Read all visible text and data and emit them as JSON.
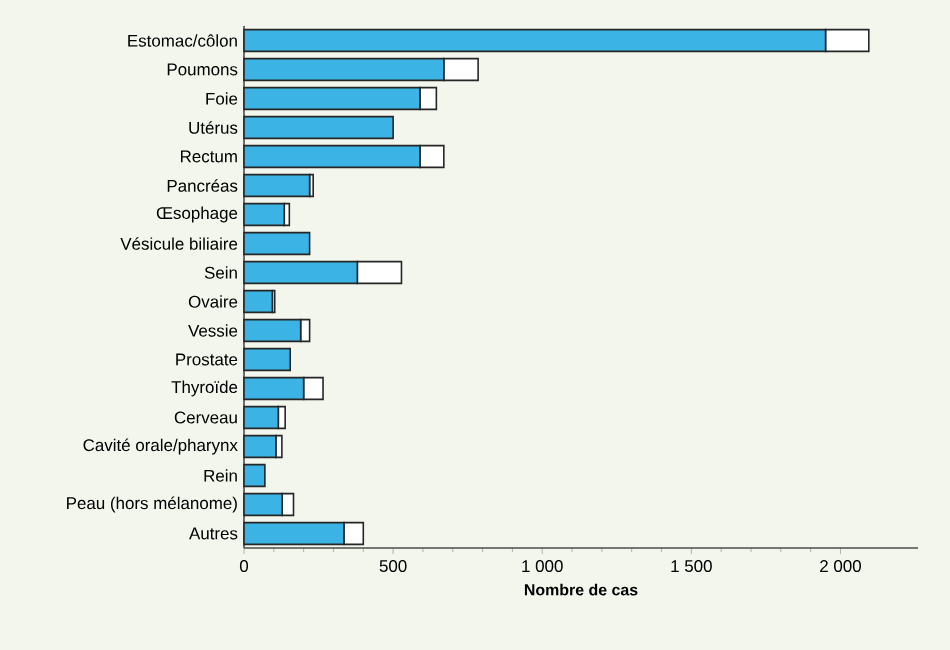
{
  "chart_data": {
    "type": "bar",
    "orientation": "horizontal",
    "stacked": true,
    "xlabel": "Nombre de cas",
    "categories": [
      "Estomac/côlon",
      "Poumons",
      "Foie",
      "Utérus",
      "Rectum",
      "Pancréas",
      "Œsophage",
      "Vésicule biliaire",
      "Sein",
      "Ovaire",
      "Vessie",
      "Prostate",
      "Thyroïde",
      "Cerveau",
      "Cavité orale/pharynx",
      "Rein",
      "Peau (hors mélanome)",
      "Autres"
    ],
    "series": [
      {
        "color": "#3bb4e5",
        "values": [
          1950,
          670,
          590,
          500,
          590,
          220,
          135,
          220,
          380,
          95,
          190,
          155,
          200,
          115,
          107,
          70,
          128,
          335
        ]
      },
      {
        "color": "#ffffff",
        "values": [
          145,
          115,
          55,
          0,
          80,
          12,
          17,
          0,
          148,
          8,
          30,
          0,
          65,
          23,
          20,
          0,
          38,
          65
        ]
      }
    ],
    "xlim": [
      0,
      2260
    ],
    "xticks": [
      0,
      500,
      {
        "value": 1000,
        "label": "1 000"
      },
      {
        "value": 1500,
        "label": "1 500"
      },
      {
        "value": 2000,
        "label": "2 000"
      }
    ]
  }
}
